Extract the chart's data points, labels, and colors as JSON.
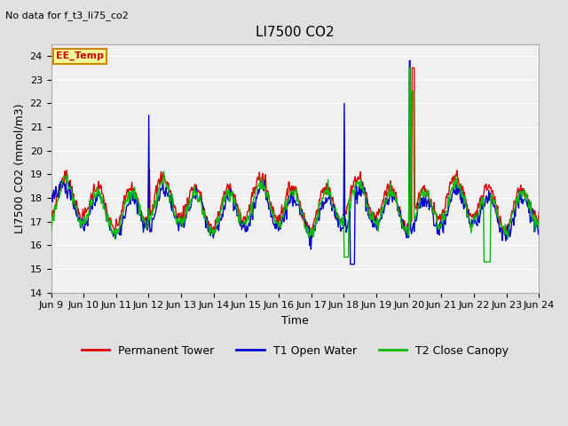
{
  "title": "LI7500 CO2",
  "subtitle": "No data for f_t3_li75_co2",
  "ylabel": "LI7500 CO2 (mmol/m3)",
  "xlabel": "Time",
  "ylim": [
    14.0,
    24.5
  ],
  "yticks": [
    14.0,
    15.0,
    16.0,
    17.0,
    18.0,
    19.0,
    20.0,
    21.0,
    22.0,
    23.0,
    24.0
  ],
  "xtick_labels": [
    "Jun 9",
    "Jun 10",
    "Jun 11",
    "Jun 12",
    "Jun 13",
    "Jun 14",
    "Jun 15",
    "Jun 16",
    "Jun 17",
    "Jun 18",
    "Jun 19",
    "Jun 20",
    "Jun 21",
    "Jun 22",
    "Jun 23",
    "Jun 24"
  ],
  "annotation_label": "EE_Temp",
  "bg_color": "#e0e0e0",
  "plot_bg_color": "#f0f0f0",
  "grid_color": "#ffffff",
  "series": {
    "Permanent Tower": {
      "color": "#dd0000",
      "lw": 1.0
    },
    "T1 Open Water": {
      "color": "#0000cc",
      "lw": 1.0
    },
    "T2 Close Canopy": {
      "color": "#00bb00",
      "lw": 1.0
    }
  },
  "title_fontsize": 11,
  "label_fontsize": 9,
  "tick_fontsize": 8,
  "legend_fontsize": 9
}
